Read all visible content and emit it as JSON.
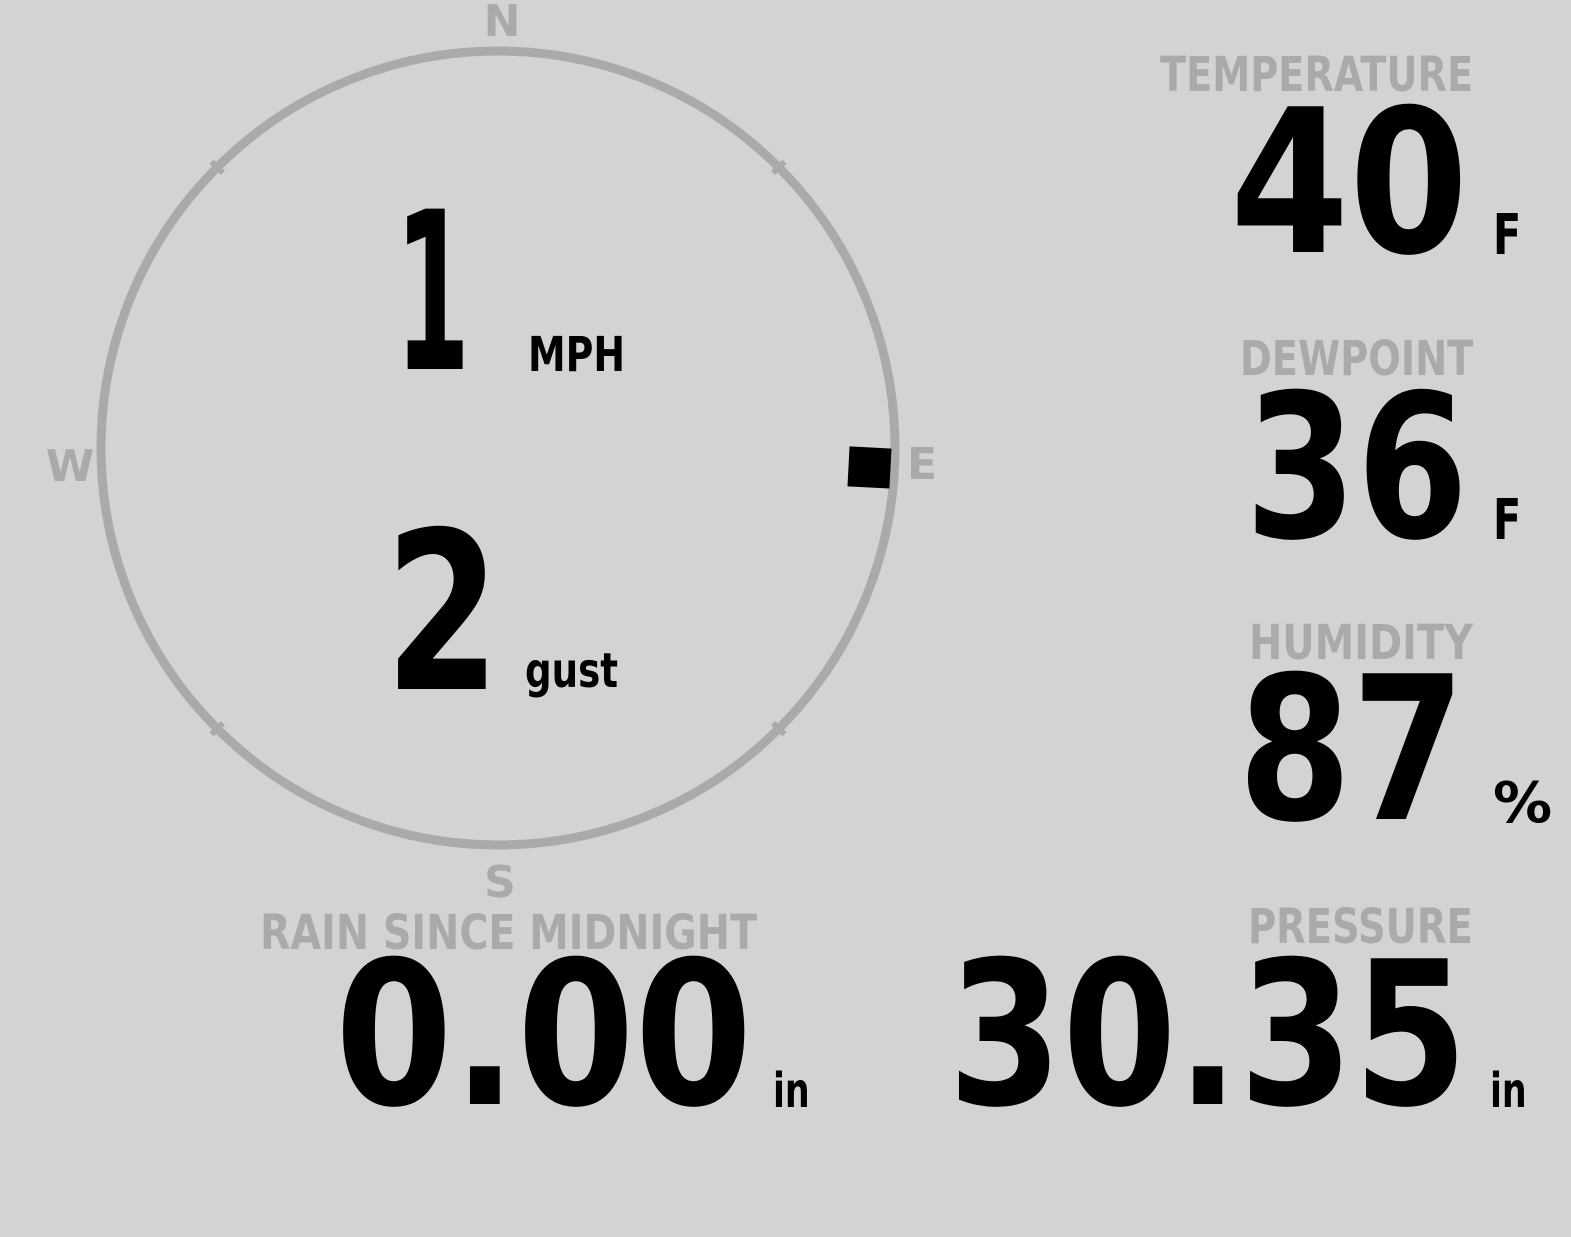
{
  "compass": {
    "north": "N",
    "south": "S",
    "east": "E",
    "west": "W",
    "wind_direction_deg": 93,
    "ring_color": "#aaaaaa"
  },
  "wind": {
    "speed": "1",
    "speed_unit": "MPH",
    "gust": "2",
    "gust_unit": "gust"
  },
  "temperature": {
    "label": "TEMPERATURE",
    "value": "40",
    "unit": "F"
  },
  "dewpoint": {
    "label": "DEWPOINT",
    "value": "36",
    "unit": "F"
  },
  "humidity": {
    "label": "HUMIDITY",
    "value": "87",
    "unit": "%"
  },
  "pressure": {
    "label": "PRESSURE",
    "value": "30.35",
    "unit": "in"
  },
  "rain": {
    "label": "RAIN SINCE MIDNIGHT",
    "value": "0.00",
    "unit": "in"
  },
  "colors": {
    "background": "#d3d3d3",
    "label": "#aaaaaa",
    "value": "#000000"
  }
}
